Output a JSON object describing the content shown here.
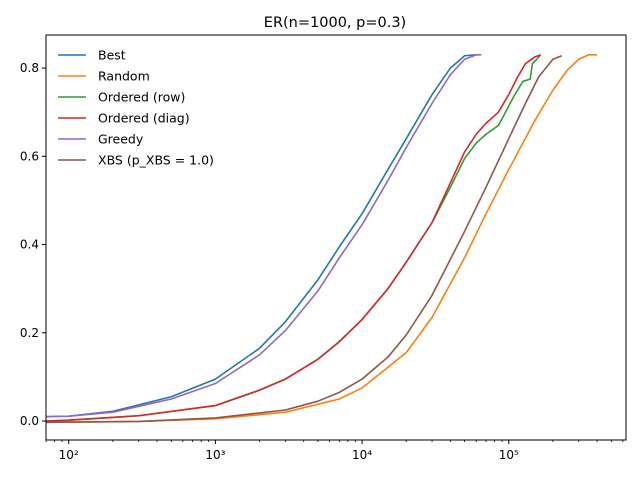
{
  "chart_data": {
    "type": "line",
    "title": "ER(n=1000, p=0.3)",
    "xlabel": "",
    "ylabel": "",
    "xscale": "log",
    "xlim": [
      70,
      630000
    ],
    "ylim": [
      -0.043,
      0.875
    ],
    "x_ticks": [
      {
        "value": 100,
        "label": "10²"
      },
      {
        "value": 1000,
        "label": "10³"
      },
      {
        "value": 10000,
        "label": "10⁴"
      },
      {
        "value": 100000,
        "label": "10⁵"
      }
    ],
    "y_ticks": [
      {
        "value": 0.0,
        "label": "0.0"
      },
      {
        "value": 0.2,
        "label": "0.2"
      },
      {
        "value": 0.4,
        "label": "0.4"
      },
      {
        "value": 0.6,
        "label": "0.6"
      },
      {
        "value": 0.8,
        "label": "0.8"
      }
    ],
    "grid": false,
    "legend_position": "top-left",
    "series": [
      {
        "name": "Best",
        "color": "#1f77b4",
        "points": [
          [
            70,
            0.01
          ],
          [
            100,
            0.011
          ],
          [
            200,
            0.022
          ],
          [
            500,
            0.055
          ],
          [
            1000,
            0.095
          ],
          [
            2000,
            0.165
          ],
          [
            3000,
            0.225
          ],
          [
            5000,
            0.32
          ],
          [
            7000,
            0.395
          ],
          [
            10000,
            0.47
          ],
          [
            15000,
            0.57
          ],
          [
            20000,
            0.64
          ],
          [
            30000,
            0.74
          ],
          [
            40000,
            0.8
          ],
          [
            50000,
            0.828
          ],
          [
            60000,
            0.83
          ]
        ]
      },
      {
        "name": "Random",
        "color": "#ff7f0e",
        "points": [
          [
            70,
            -0.003
          ],
          [
            300,
            -0.001
          ],
          [
            1000,
            0.005
          ],
          [
            3000,
            0.02
          ],
          [
            7000,
            0.05
          ],
          [
            10000,
            0.075
          ],
          [
            20000,
            0.155
          ],
          [
            30000,
            0.235
          ],
          [
            50000,
            0.37
          ],
          [
            70000,
            0.47
          ],
          [
            100000,
            0.57
          ],
          [
            150000,
            0.68
          ],
          [
            200000,
            0.75
          ],
          [
            250000,
            0.795
          ],
          [
            300000,
            0.82
          ],
          [
            350000,
            0.83
          ],
          [
            400000,
            0.83
          ]
        ]
      },
      {
        "name": "Ordered (row)",
        "color": "#2ca02c",
        "points": [
          [
            70,
            0.0
          ],
          [
            100,
            0.002
          ],
          [
            300,
            0.012
          ],
          [
            1000,
            0.035
          ],
          [
            2000,
            0.07
          ],
          [
            3000,
            0.095
          ],
          [
            5000,
            0.14
          ],
          [
            7000,
            0.18
          ],
          [
            10000,
            0.23
          ],
          [
            15000,
            0.3
          ],
          [
            20000,
            0.36
          ],
          [
            30000,
            0.45
          ],
          [
            40000,
            0.53
          ],
          [
            50000,
            0.595
          ],
          [
            60000,
            0.63
          ],
          [
            70000,
            0.65
          ],
          [
            85000,
            0.67
          ],
          [
            95000,
            0.7
          ],
          [
            110000,
            0.74
          ],
          [
            125000,
            0.77
          ],
          [
            140000,
            0.775
          ],
          [
            145000,
            0.81
          ],
          [
            155000,
            0.82
          ],
          [
            165000,
            0.83
          ]
        ]
      },
      {
        "name": "Ordered (diag)",
        "color": "#d62728",
        "points": [
          [
            70,
            0.0
          ],
          [
            100,
            0.002
          ],
          [
            300,
            0.012
          ],
          [
            1000,
            0.035
          ],
          [
            2000,
            0.07
          ],
          [
            3000,
            0.095
          ],
          [
            5000,
            0.14
          ],
          [
            7000,
            0.18
          ],
          [
            10000,
            0.23
          ],
          [
            15000,
            0.3
          ],
          [
            20000,
            0.36
          ],
          [
            30000,
            0.45
          ],
          [
            40000,
            0.54
          ],
          [
            50000,
            0.61
          ],
          [
            60000,
            0.65
          ],
          [
            70000,
            0.675
          ],
          [
            85000,
            0.7
          ],
          [
            100000,
            0.74
          ],
          [
            115000,
            0.78
          ],
          [
            130000,
            0.81
          ],
          [
            150000,
            0.825
          ],
          [
            165000,
            0.83
          ]
        ]
      },
      {
        "name": "Greedy",
        "color": "#9467bd",
        "points": [
          [
            70,
            0.01
          ],
          [
            100,
            0.011
          ],
          [
            200,
            0.02
          ],
          [
            500,
            0.05
          ],
          [
            1000,
            0.085
          ],
          [
            2000,
            0.15
          ],
          [
            3000,
            0.205
          ],
          [
            5000,
            0.295
          ],
          [
            7000,
            0.37
          ],
          [
            10000,
            0.445
          ],
          [
            15000,
            0.545
          ],
          [
            20000,
            0.62
          ],
          [
            30000,
            0.72
          ],
          [
            40000,
            0.785
          ],
          [
            50000,
            0.82
          ],
          [
            60000,
            0.83
          ],
          [
            65000,
            0.83
          ]
        ]
      },
      {
        "name": "XBS (p_XBS = 1.0)",
        "color": "#8c564b",
        "points": [
          [
            70,
            -0.003
          ],
          [
            300,
            -0.001
          ],
          [
            1000,
            0.007
          ],
          [
            3000,
            0.025
          ],
          [
            5000,
            0.045
          ],
          [
            7000,
            0.065
          ],
          [
            10000,
            0.095
          ],
          [
            15000,
            0.145
          ],
          [
            20000,
            0.195
          ],
          [
            30000,
            0.285
          ],
          [
            50000,
            0.43
          ],
          [
            70000,
            0.53
          ],
          [
            100000,
            0.64
          ],
          [
            130000,
            0.72
          ],
          [
            160000,
            0.78
          ],
          [
            200000,
            0.82
          ],
          [
            230000,
            0.828
          ]
        ]
      }
    ]
  }
}
